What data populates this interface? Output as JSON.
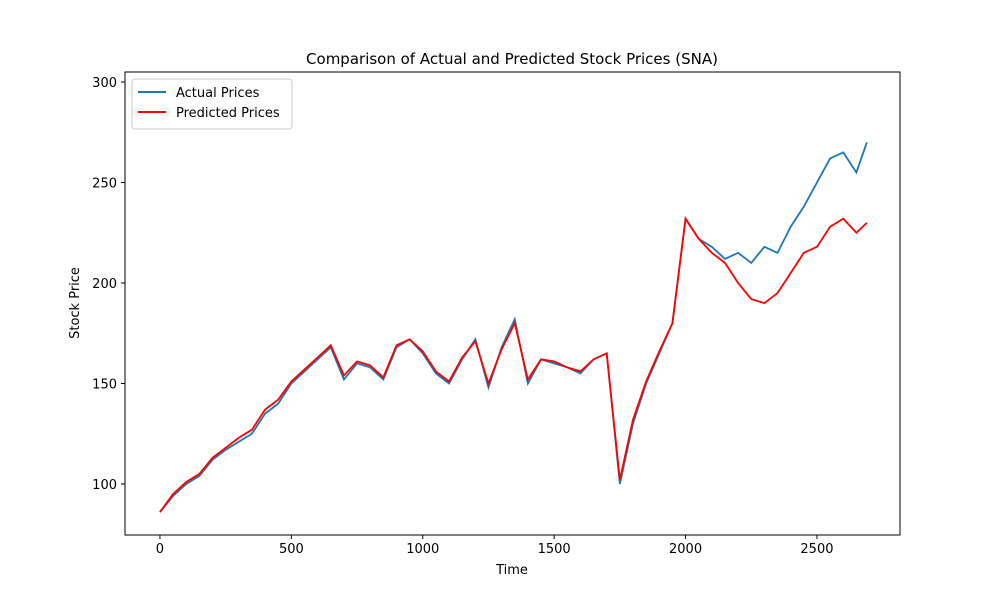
{
  "chart_data": {
    "type": "line",
    "title": "Comparison of Actual and Predicted Stock Prices (SNA)",
    "x_label": "Time",
    "y_label": "Stock Price",
    "x": [
      0,
      50,
      100,
      150,
      200,
      250,
      300,
      350,
      400,
      450,
      500,
      550,
      600,
      650,
      700,
      750,
      800,
      850,
      900,
      950,
      1000,
      1050,
      1100,
      1150,
      1200,
      1250,
      1300,
      1350,
      1400,
      1450,
      1500,
      1550,
      1600,
      1650,
      1700,
      1750,
      1800,
      1850,
      1900,
      1950,
      2000,
      2050,
      2100,
      2150,
      2200,
      2250,
      2300,
      2350,
      2400,
      2450,
      2500,
      2550,
      2600,
      2650,
      2690
    ],
    "series": [
      {
        "name": "Actual Prices",
        "color": "#1f77b4",
        "values": [
          86,
          94,
          100,
          104,
          112,
          117,
          121,
          125,
          135,
          140,
          150,
          156,
          162,
          168,
          152,
          160,
          158,
          152,
          168,
          172,
          165,
          155,
          150,
          162,
          172,
          148,
          168,
          182,
          150,
          162,
          160,
          158,
          155,
          162,
          165,
          100,
          130,
          150,
          165,
          180,
          232,
          222,
          218,
          212,
          215,
          210,
          218,
          215,
          228,
          238,
          250,
          262,
          265,
          255,
          270
        ]
      },
      {
        "name": "Predicted Prices",
        "color": "#ff0000",
        "values": [
          86,
          95,
          101,
          105,
          113,
          118,
          123,
          127,
          137,
          142,
          151,
          157,
          163,
          169,
          154,
          161,
          159,
          153,
          169,
          172,
          166,
          156,
          151,
          163,
          171,
          150,
          167,
          180,
          152,
          162,
          161,
          158,
          156,
          162,
          165,
          102,
          132,
          151,
          166,
          180,
          232,
          222,
          215,
          210,
          200,
          192,
          190,
          195,
          205,
          215,
          218,
          228,
          232,
          225,
          230
        ]
      }
    ],
    "xlim": [
      -133,
      2816
    ],
    "ylim": [
      74.6,
      305
    ],
    "xticks": [
      0,
      500,
      1000,
      1500,
      2000,
      2500
    ],
    "yticks": [
      100,
      150,
      200,
      250,
      300
    ],
    "legend": "upper left",
    "grid": false
  }
}
